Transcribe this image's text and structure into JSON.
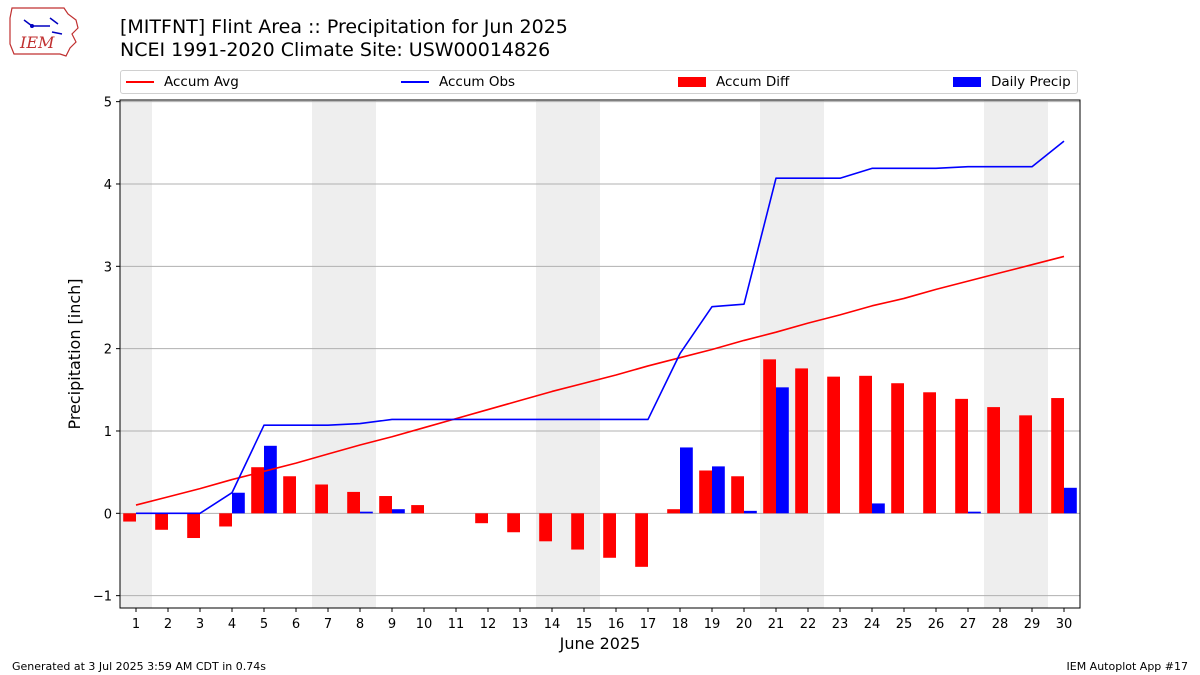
{
  "header": {
    "title": "[MITFNT] Flint Area :: Precipitation for Jun 2025",
    "subtitle": "NCEI 1991-2020 Climate Site: USW00014826",
    "logo_text": "IEM"
  },
  "legend": [
    {
      "label": "Accum Avg",
      "kind": "line",
      "color": "#ff0000"
    },
    {
      "label": "Accum Obs",
      "kind": "line",
      "color": "#0000ff"
    },
    {
      "label": "Accum Diff",
      "kind": "bar",
      "color": "#ff0000"
    },
    {
      "label": "Daily Precip",
      "kind": "bar",
      "color": "#0000ff"
    }
  ],
  "footer": {
    "left": "Generated at 3 Jul 2025 3:59 AM CDT in 0.74s",
    "right": "IEM Autoplot App #17"
  },
  "chart_data": {
    "type": "bar",
    "xlabel": "June 2025",
    "ylabel": "Precipitation [inch]",
    "ylim": [
      -1.15,
      5.02
    ],
    "yticks": [
      -1,
      0,
      1,
      2,
      3,
      4,
      5
    ],
    "grid": "horizontal",
    "legend_position": "top",
    "weekend_shading_days": [
      [
        1,
        1
      ],
      [
        7,
        8
      ],
      [
        14,
        15
      ],
      [
        21,
        22
      ],
      [
        28,
        29
      ]
    ],
    "x": [
      1,
      2,
      3,
      4,
      5,
      6,
      7,
      8,
      9,
      10,
      11,
      12,
      13,
      14,
      15,
      16,
      17,
      18,
      19,
      20,
      21,
      22,
      23,
      24,
      25,
      26,
      27,
      28,
      29,
      30
    ],
    "series": [
      {
        "name": "Accum Avg",
        "type": "line",
        "color": "#ff0000",
        "values": [
          0.1,
          0.2,
          0.3,
          0.41,
          0.51,
          0.61,
          0.72,
          0.83,
          0.93,
          1.04,
          1.15,
          1.26,
          1.37,
          1.48,
          1.58,
          1.68,
          1.79,
          1.89,
          1.99,
          2.1,
          2.2,
          2.31,
          2.41,
          2.52,
          2.61,
          2.72,
          2.82,
          2.92,
          3.02,
          3.12
        ]
      },
      {
        "name": "Accum Obs",
        "type": "line",
        "color": "#0000ff",
        "values": [
          0.0,
          0.0,
          0.0,
          0.25,
          1.07,
          1.07,
          1.07,
          1.09,
          1.14,
          1.14,
          1.14,
          1.14,
          1.14,
          1.14,
          1.14,
          1.14,
          1.14,
          1.94,
          2.51,
          2.54,
          4.07,
          4.07,
          4.07,
          4.19,
          4.19,
          4.19,
          4.21,
          4.21,
          4.21,
          4.52
        ]
      },
      {
        "name": "Accum Diff",
        "type": "bar",
        "color": "#ff0000",
        "values": [
          -0.1,
          -0.2,
          -0.3,
          -0.16,
          0.56,
          0.45,
          0.35,
          0.26,
          0.21,
          0.1,
          0.0,
          -0.12,
          -0.23,
          -0.34,
          -0.44,
          -0.54,
          -0.65,
          0.05,
          0.52,
          0.45,
          1.87,
          1.76,
          1.66,
          1.67,
          1.58,
          1.47,
          1.39,
          1.29,
          1.19,
          1.4
        ]
      },
      {
        "name": "Daily Precip",
        "type": "bar",
        "color": "#0000ff",
        "values": [
          0,
          0,
          0,
          0.25,
          0.82,
          0,
          0,
          0.02,
          0.05,
          0,
          0,
          0,
          0,
          0,
          0,
          0,
          0,
          0.8,
          0.57,
          0.03,
          1.53,
          0,
          0,
          0.12,
          0,
          0,
          0.02,
          0,
          0,
          0.31
        ]
      }
    ]
  }
}
